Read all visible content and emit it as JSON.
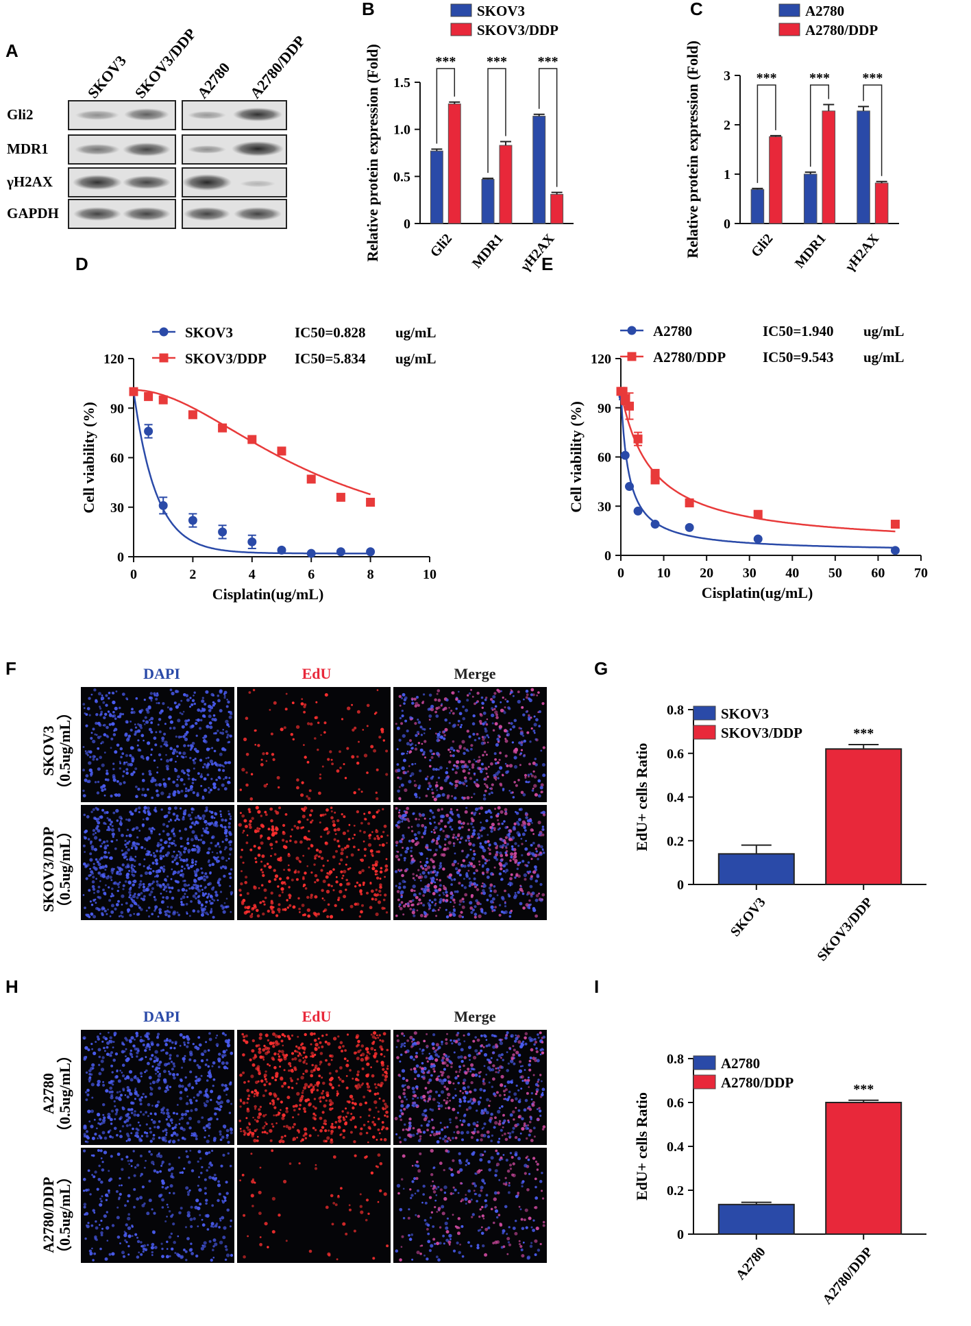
{
  "colors": {
    "blue": "#2a4aa8",
    "red": "#e8283a",
    "red_curve": "#e83a3a",
    "blue_curve": "#2a4aa8"
  },
  "panel_letters": {
    "A": "A",
    "B": "B",
    "C": "C",
    "D": "D",
    "E": "E",
    "F": "F",
    "G": "G",
    "H": "H",
    "I": "I"
  },
  "western_blot": {
    "lanes": [
      "SKOV3",
      "SKOV3/DDP",
      "A2780",
      "A2780/DDP"
    ],
    "rows": [
      "Gli2",
      "MDR1",
      "γH2AX",
      "GAPDH"
    ]
  },
  "chart_data": [
    {
      "id": "B",
      "type": "bar",
      "categories": [
        "Gli2",
        "MDR1",
        "γH2AX"
      ],
      "series": [
        {
          "name": "SKOV3",
          "values": [
            0.77,
            0.47,
            1.14
          ],
          "errors": [
            0.02,
            0.01,
            0.02
          ]
        },
        {
          "name": "SKOV3/DDP",
          "values": [
            1.27,
            0.83,
            0.31
          ],
          "errors": [
            0.02,
            0.04,
            0.02
          ]
        }
      ],
      "ylabel": "Relative protein expression (Fold)",
      "ylim": [
        0,
        1.5
      ],
      "yticks": [
        "0",
        "0.5",
        "1.0",
        "1.5"
      ],
      "significance": [
        "***",
        "***",
        "***"
      ]
    },
    {
      "id": "C",
      "type": "bar",
      "categories": [
        "Gli2",
        "MDR1",
        "γH2AX"
      ],
      "series": [
        {
          "name": "A2780",
          "values": [
            0.69,
            1.0,
            2.28
          ],
          "errors": [
            0.02,
            0.04,
            0.09
          ]
        },
        {
          "name": "A2780/DDP",
          "values": [
            1.76,
            2.28,
            0.82
          ],
          "errors": [
            0.02,
            0.13,
            0.03
          ]
        }
      ],
      "ylabel": "Relative protein expression (Fold)",
      "ylim": [
        0,
        3
      ],
      "yticks": [
        "0",
        "1",
        "2",
        "3"
      ],
      "significance": [
        "***",
        "***",
        "***"
      ]
    },
    {
      "id": "D",
      "type": "scatter",
      "xlabel": "Cisplatin(ug/mL)",
      "ylabel": "Cell viability (%)",
      "xlim": [
        0,
        10
      ],
      "ylim": [
        0,
        120
      ],
      "xticks": [
        "0",
        "2",
        "4",
        "6",
        "8",
        "10"
      ],
      "yticks": [
        "0",
        "30",
        "60",
        "90",
        "120"
      ],
      "series": [
        {
          "name": "SKOV3",
          "ic50_label": "IC50=0.828",
          "unit": "ug/mL",
          "marker": "circle",
          "x": [
            0,
            0.5,
            1,
            2,
            3,
            4,
            5,
            6,
            7,
            8
          ],
          "y": [
            100,
            76,
            31,
            22,
            15,
            9,
            4,
            2,
            3,
            3
          ],
          "err": [
            2,
            4,
            5,
            4,
            4,
            4,
            1,
            1,
            1,
            1
          ]
        },
        {
          "name": "SKOV3/DDP",
          "ic50_label": "IC50=5.834",
          "unit": "ug/mL",
          "marker": "square",
          "x": [
            0,
            0.5,
            1,
            2,
            3,
            4,
            5,
            6,
            7,
            8
          ],
          "y": [
            100,
            97,
            95,
            86,
            78,
            71,
            64,
            47,
            36,
            33
          ],
          "err": [
            1,
            1,
            1,
            1,
            1,
            1,
            1,
            1,
            1,
            1
          ]
        }
      ]
    },
    {
      "id": "E",
      "type": "scatter",
      "xlabel": "Cisplatin(ug/mL)",
      "ylabel": "Cell viability (%)",
      "xlim": [
        0,
        70
      ],
      "ylim": [
        0,
        120
      ],
      "xticks": [
        "0",
        "10",
        "20",
        "30",
        "40",
        "50",
        "60",
        "70"
      ],
      "yticks": [
        "0",
        "30",
        "60",
        "90",
        "120"
      ],
      "series": [
        {
          "name": "A2780",
          "ic50_label": "IC50=1.940",
          "unit": "ug/mL",
          "marker": "circle",
          "x": [
            0,
            0.5,
            1,
            2,
            4,
            8,
            16,
            32,
            64
          ],
          "y": [
            100,
            97,
            61,
            42,
            27,
            19,
            17,
            10,
            3
          ],
          "err": [
            2,
            2,
            1,
            1,
            1,
            1,
            1,
            1,
            1
          ]
        },
        {
          "name": "A2780/DDP",
          "ic50_label": "IC50=9.543",
          "unit": "ug/mL",
          "marker": "square",
          "x": [
            0,
            0.5,
            1,
            2,
            4,
            8,
            8,
            16,
            32,
            64
          ],
          "y": [
            100,
            100,
            95,
            91,
            71,
            50,
            46,
            32,
            25,
            19
          ],
          "err": [
            2,
            2,
            3,
            8,
            4,
            2,
            2,
            1,
            1,
            1
          ]
        }
      ]
    },
    {
      "id": "G",
      "type": "bar",
      "categories": [
        "SKOV3",
        "SKOV3/DDP"
      ],
      "values": [
        0.14,
        0.62
      ],
      "errors": [
        0.04,
        0.02
      ],
      "ylabel": "EdU+ cells Ratio",
      "ylim": [
        0,
        0.8
      ],
      "yticks": [
        "0",
        "0.2",
        "0.4",
        "0.6",
        "0.8"
      ],
      "legend": [
        "SKOV3",
        "SKOV3/DDP"
      ],
      "significance": "***"
    },
    {
      "id": "I",
      "type": "bar",
      "categories": [
        "A2780",
        "A2780/DDP"
      ],
      "values": [
        0.135,
        0.6
      ],
      "errors": [
        0.01,
        0.01
      ],
      "ylabel": "EdU+ cells Ratio",
      "ylim": [
        0,
        0.8
      ],
      "yticks": [
        "0",
        "0.2",
        "0.4",
        "0.6",
        "0.8"
      ],
      "legend": [
        "A2780",
        "A2780/DDP"
      ],
      "significance": "***"
    }
  ],
  "microscopy_F": {
    "columns": [
      "DAPI",
      "EdU",
      "Merge"
    ],
    "rows": [
      {
        "name": "SKOV3",
        "dose": "（0.5ug/mL）"
      },
      {
        "name": "SKOV3/DDP",
        "dose": "（0.5ug/mL）"
      }
    ]
  },
  "microscopy_H": {
    "columns": [
      "DAPI",
      "EdU",
      "Merge"
    ],
    "rows": [
      {
        "name": "A2780",
        "dose": "（0.5ug/mL）"
      },
      {
        "name": "A2780/DDP",
        "dose": "（0.5ug/mL）"
      }
    ]
  }
}
